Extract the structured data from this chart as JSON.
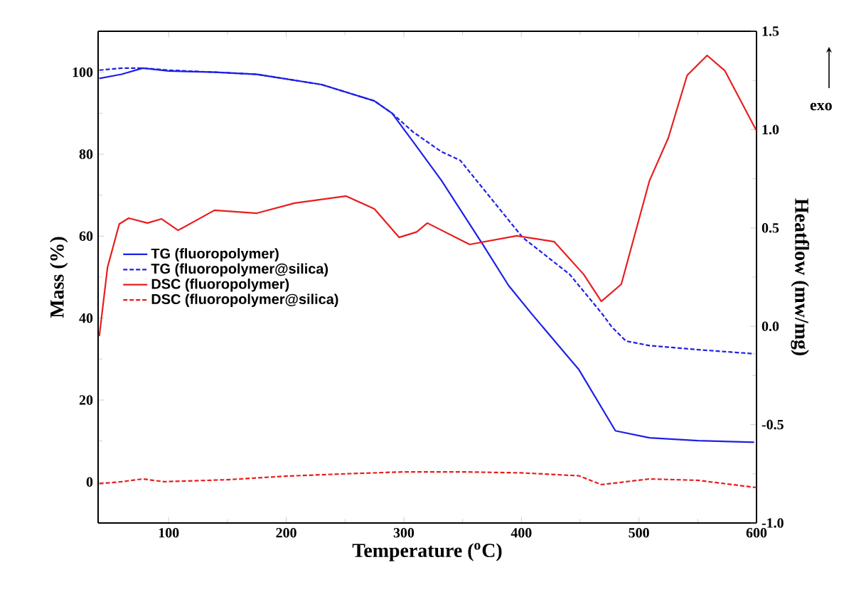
{
  "chart_data": {
    "type": "line",
    "xlabel": "Temperature ($^{o}$C)",
    "ylabel": "Mass (%)",
    "y2label": "Heatflow (mw/mg)",
    "xlim": [
      40,
      600
    ],
    "xticks": [
      100,
      200,
      300,
      400,
      500,
      600
    ],
    "ylim": [
      -10,
      110
    ],
    "yticks": [
      0,
      20,
      40,
      60,
      80,
      100
    ],
    "y2lim": [
      -1.0,
      1.5
    ],
    "y2ticks": [
      {
        "value": -1.0,
        "label": "-1.0"
      },
      {
        "value": -0.5,
        "label": "-0.5"
      },
      {
        "value": 0.0,
        "label": "0.0"
      },
      {
        "value": 0.5,
        "label": "0.5"
      },
      {
        "value": 1.0,
        "label": "1.0"
      },
      {
        "value": 1.5,
        "label": "1.5"
      }
    ],
    "legend": "left",
    "marker": "none",
    "annotations": [
      "exo"
    ],
    "series": [
      {
        "name": "TG (fluoropolymer)",
        "color": "#1f1fe6",
        "line_style": "solid",
        "x": [
          41,
          60,
          78,
          100,
          140,
          175,
          230,
          275,
          290,
          308,
          332,
          368,
          389,
          408,
          449,
          480,
          509,
          550,
          598
        ],
        "values": [
          98.5,
          99.5,
          101,
          100.3,
          100,
          99.5,
          97,
          93,
          90,
          83,
          73.6,
          57.6,
          48,
          41.3,
          27.4,
          12.5,
          10.8,
          10.1,
          9.7
        ]
      },
      {
        "name": "TG (fluoropolymer@silica)",
        "color": "#1f1fe6",
        "line_style": "dashed",
        "x": [
          41,
          60,
          78,
          100,
          140,
          175,
          230,
          275,
          290,
          308,
          332,
          348,
          401,
          441,
          468,
          477,
          489,
          509,
          550,
          598
        ],
        "values": [
          100.5,
          101,
          101,
          100.5,
          100,
          99.5,
          97,
          93,
          90,
          85.4,
          80.6,
          78.5,
          59.7,
          50.7,
          41.3,
          37.8,
          34.4,
          33.3,
          32.3,
          31.3
        ]
      },
      {
        "name": "DSC (fluoropolymer)",
        "color": "#e61e1e",
        "line_style": "solid",
        "axis": "y2",
        "x": [
          41,
          48,
          58,
          66,
          82,
          94,
          108,
          139,
          175,
          207,
          251,
          275,
          296,
          311,
          320,
          356,
          396,
          428,
          453,
          468,
          485,
          509,
          525,
          541,
          558,
          573,
          600
        ],
        "values": [
          -0.05,
          0.3,
          0.52,
          0.55,
          0.525,
          0.546,
          0.488,
          0.59,
          0.575,
          0.626,
          0.662,
          0.597,
          0.452,
          0.48,
          0.525,
          0.416,
          0.46,
          0.43,
          0.264,
          0.127,
          0.214,
          0.741,
          0.958,
          1.276,
          1.377,
          1.3,
          0.994
        ]
      },
      {
        "name": "DSC (fluoropolymer@silica)",
        "color": "#e61e1e",
        "line_style": "dashed",
        "axis": "y2",
        "x": [
          41,
          60,
          78,
          96,
          150,
          199,
          250,
          300,
          348,
          400,
          449,
          468,
          509,
          550,
          600
        ],
        "values": [
          -0.8,
          -0.79,
          -0.776,
          -0.79,
          -0.78,
          -0.762,
          -0.75,
          -0.74,
          -0.74,
          -0.745,
          -0.76,
          -0.805,
          -0.776,
          -0.783,
          -0.82
        ]
      }
    ]
  }
}
